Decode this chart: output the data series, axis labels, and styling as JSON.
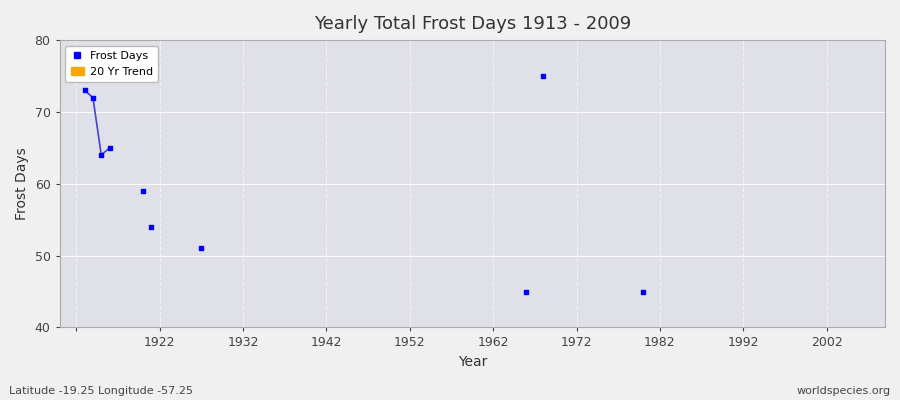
{
  "title": "Yearly Total Frost Days 1913 - 2009",
  "xlabel": "Year",
  "ylabel": "Frost Days",
  "xlim": [
    1910,
    2009
  ],
  "ylim": [
    40,
    80
  ],
  "yticks": [
    40,
    50,
    60,
    70,
    80
  ],
  "xticks": [
    1912,
    1922,
    1932,
    1942,
    1952,
    1962,
    1972,
    1982,
    1992,
    2002
  ],
  "xtick_labels": [
    "",
    "1922",
    "1932",
    "1942",
    "1952",
    "1962",
    "1972",
    "1982",
    "1992",
    "2002"
  ],
  "frost_days_x": [
    1913,
    1914,
    1915,
    1916,
    1921,
    1927,
    1966,
    1968,
    1980
  ],
  "frost_days_y": [
    73,
    72,
    64,
    65,
    54,
    51,
    45,
    75,
    45
  ],
  "line_59_x": [
    1920
  ],
  "line_59_y": [
    59
  ],
  "trend_line_x": [
    1913,
    1914,
    1915,
    1916
  ],
  "trend_line_y": [
    73,
    72,
    64,
    65
  ],
  "point_color": "#0000ff",
  "trend_color": "#4444cc",
  "fig_bg_color": "#f0f0f0",
  "plot_bg_color": "#e0e0e8",
  "grid_color": "#ffffff",
  "footer_left": "Latitude -19.25 Longitude -57.25",
  "footer_right": "worldspecies.org",
  "legend_frost_label": "Frost Days",
  "legend_trend_label": "20 Yr Trend",
  "title_fontsize": 13,
  "axis_label_fontsize": 10,
  "tick_fontsize": 9,
  "footer_fontsize": 8
}
